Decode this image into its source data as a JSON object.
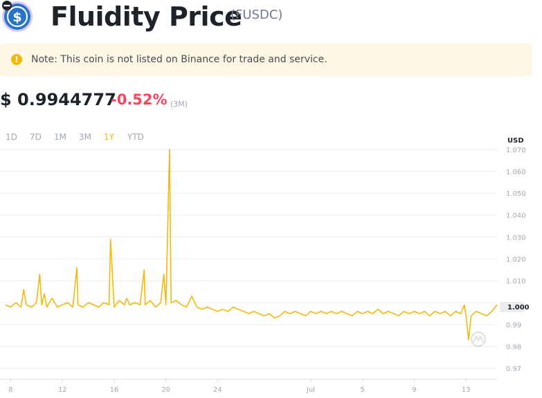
{
  "header": {
    "title": "Fluidity Price",
    "symbol": "(FUSDC)"
  },
  "note": {
    "text": "Note: This coin is not listed on Binance for trade and service."
  },
  "price": {
    "value": "$ 0.9944777",
    "change": "-0.52%",
    "period": "(3M)"
  },
  "ranges": [
    {
      "label": "1D",
      "active": false
    },
    {
      "label": "7D",
      "active": false
    },
    {
      "label": "1M",
      "active": false
    },
    {
      "label": "3M",
      "active": false
    },
    {
      "label": "1Y",
      "active": true
    },
    {
      "label": "YTD",
      "active": false
    }
  ],
  "colors": {
    "accent": "#f0b90b",
    "negative": "#f6465d",
    "note_bg": "#fdf7e3",
    "text": "#1e2329",
    "muted": "#a0a7b2"
  },
  "chart_data": {
    "type": "line",
    "unit": "USD",
    "current_value_label": "1.000",
    "ylim": [
      0.965,
      1.075
    ],
    "yticks": [
      "1.070",
      "1.060",
      "1.050",
      "1.040",
      "1.030",
      "1.020",
      "1.010",
      "1.000",
      "0.99",
      "0.98",
      "0.97"
    ],
    "xlim": [
      0,
      95
    ],
    "xticks": [
      {
        "label": "8",
        "x": 1
      },
      {
        "label": "12",
        "x": 11
      },
      {
        "label": "16",
        "x": 21
      },
      {
        "label": "20",
        "x": 31
      },
      {
        "label": "24",
        "x": 41
      },
      {
        "label": "Jul",
        "x": 59
      },
      {
        "label": "5",
        "x": 69
      },
      {
        "label": "9",
        "x": 79
      },
      {
        "label": "13",
        "x": 89
      }
    ],
    "series": [
      {
        "color": "#f0b90b",
        "points": [
          [
            0,
            0.999
          ],
          [
            1,
            0.998
          ],
          [
            2,
            1.0
          ],
          [
            3,
            0.998
          ],
          [
            3.5,
            1.006
          ],
          [
            4,
            0.999
          ],
          [
            5,
            0.998
          ],
          [
            6,
            1.0
          ],
          [
            6.6,
            1.013
          ],
          [
            7,
            0.999
          ],
          [
            7.5,
            1.004
          ],
          [
            8,
            0.998
          ],
          [
            9,
            1.002
          ],
          [
            10,
            0.998
          ],
          [
            11,
            0.999
          ],
          [
            12,
            1.0
          ],
          [
            13,
            0.998
          ],
          [
            13.8,
            1.016
          ],
          [
            14,
            0.999
          ],
          [
            15,
            0.998
          ],
          [
            16,
            1.0
          ],
          [
            17,
            0.999
          ],
          [
            18,
            0.998
          ],
          [
            19,
            1.0
          ],
          [
            20,
            0.999
          ],
          [
            20.3,
            1.029
          ],
          [
            21,
            0.998
          ],
          [
            22,
            1.001
          ],
          [
            23,
            0.999
          ],
          [
            23.4,
            1.002
          ],
          [
            24,
            0.999
          ],
          [
            25,
            1.0
          ],
          [
            26,
            0.999
          ],
          [
            26.5,
            1.009
          ],
          [
            26.8,
            1.015
          ],
          [
            27,
            0.999
          ],
          [
            28,
            1.001
          ],
          [
            29,
            0.998
          ],
          [
            30,
            1.0
          ],
          [
            30.6,
            1.013
          ],
          [
            31,
            0.999
          ],
          [
            31.7,
            1.07
          ],
          [
            32,
            1.0
          ],
          [
            33,
            1.001
          ],
          [
            34,
            0.999
          ],
          [
            35,
            0.998
          ],
          [
            36,
            1.003
          ],
          [
            37,
            0.998
          ],
          [
            38,
            0.997
          ],
          [
            39,
            0.998
          ],
          [
            40,
            0.997
          ],
          [
            41,
            0.996
          ],
          [
            42,
            0.997
          ],
          [
            43,
            0.996
          ],
          [
            44,
            0.998
          ],
          [
            45,
            0.997
          ],
          [
            46,
            0.996
          ],
          [
            47,
            0.995
          ],
          [
            48,
            0.996
          ],
          [
            49,
            0.995
          ],
          [
            50,
            0.994
          ],
          [
            51,
            0.995
          ],
          [
            52,
            0.993
          ],
          [
            53,
            0.994
          ],
          [
            54,
            0.996
          ],
          [
            55,
            0.995
          ],
          [
            56,
            0.996
          ],
          [
            57,
            0.995
          ],
          [
            58,
            0.994
          ],
          [
            59,
            0.996
          ],
          [
            60,
            0.995
          ],
          [
            61,
            0.996
          ],
          [
            62,
            0.995
          ],
          [
            63,
            0.996
          ],
          [
            64,
            0.995
          ],
          [
            65,
            0.996
          ],
          [
            66,
            0.995
          ],
          [
            67,
            0.994
          ],
          [
            68,
            0.996
          ],
          [
            69,
            0.995
          ],
          [
            70,
            0.996
          ],
          [
            71,
            0.995
          ],
          [
            72,
            0.997
          ],
          [
            73,
            0.995
          ],
          [
            74,
            0.996
          ],
          [
            75,
            0.995
          ],
          [
            76,
            0.994
          ],
          [
            77,
            0.996
          ],
          [
            78,
            0.995
          ],
          [
            79,
            0.996
          ],
          [
            80,
            0.995
          ],
          [
            81,
            0.996
          ],
          [
            82,
            0.994
          ],
          [
            83,
            0.996
          ],
          [
            84,
            0.995
          ],
          [
            85,
            0.996
          ],
          [
            86,
            0.994
          ],
          [
            87,
            0.996
          ],
          [
            88,
            0.995
          ],
          [
            88.7,
            0.999
          ],
          [
            89,
            0.994
          ],
          [
            89.5,
            0.983
          ],
          [
            90,
            0.994
          ],
          [
            91,
            0.996
          ],
          [
            92,
            0.995
          ],
          [
            93,
            0.994
          ],
          [
            94,
            0.996
          ],
          [
            95,
            0.999
          ]
        ]
      }
    ]
  }
}
